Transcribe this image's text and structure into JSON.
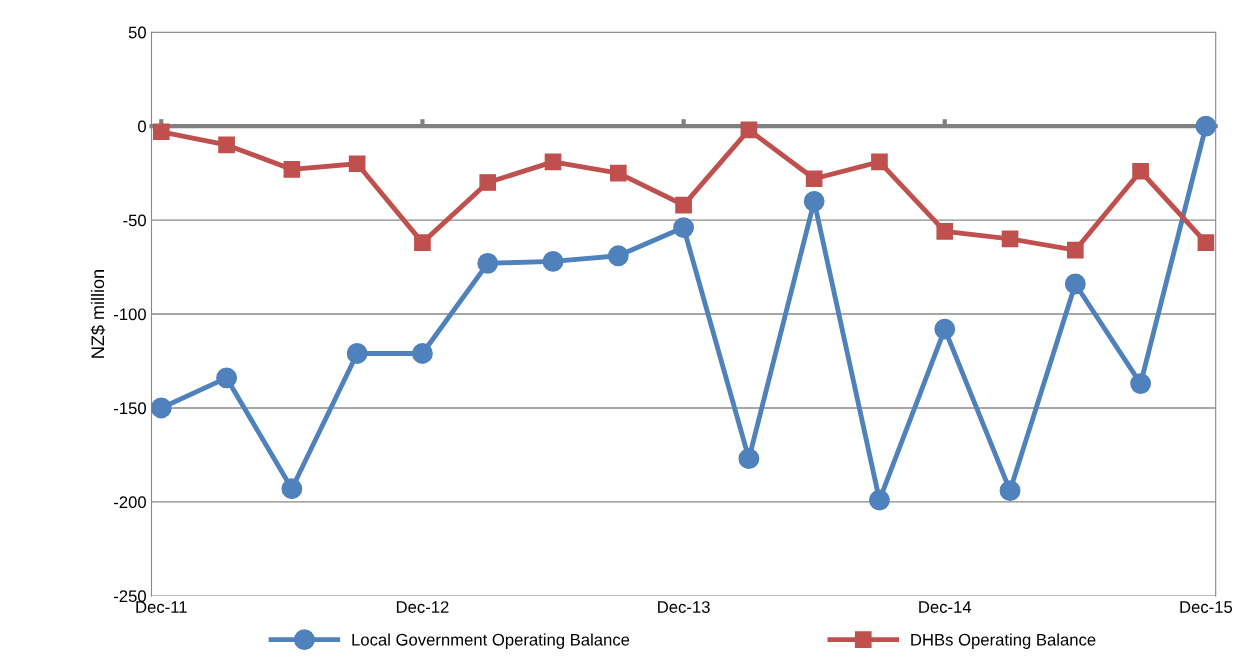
{
  "chart_data": {
    "type": "line",
    "ylabel": "NZ$ million",
    "categories": [
      "Dec-11",
      null,
      null,
      null,
      "Dec-12",
      null,
      null,
      null,
      "Dec-13",
      null,
      null,
      null,
      "Dec-14",
      null,
      null,
      null,
      "Dec-15"
    ],
    "series": [
      {
        "name": "Local Government Operating Balance",
        "color": "#4f81bd",
        "marker": "circle",
        "values": [
          -150,
          -134,
          -193,
          -121,
          -121,
          -73,
          -72,
          -69,
          -54,
          -177,
          -40,
          -199,
          -108,
          -194,
          -84,
          -137,
          0
        ]
      },
      {
        "name": "DHBs Operating Balance",
        "color": "#c0504d",
        "marker": "square",
        "values": [
          -3,
          -10,
          -23,
          -20,
          -62,
          -30,
          -19,
          -25,
          -42,
          -2,
          -28,
          -19,
          -56,
          -60,
          -66,
          -24,
          -62
        ]
      }
    ],
    "ylim": [
      -250,
      50
    ],
    "yticks": [
      -250,
      -200,
      -150,
      -100,
      -50,
      0,
      50
    ],
    "grid": "y",
    "legend": "bottom",
    "line_style": "solid"
  }
}
